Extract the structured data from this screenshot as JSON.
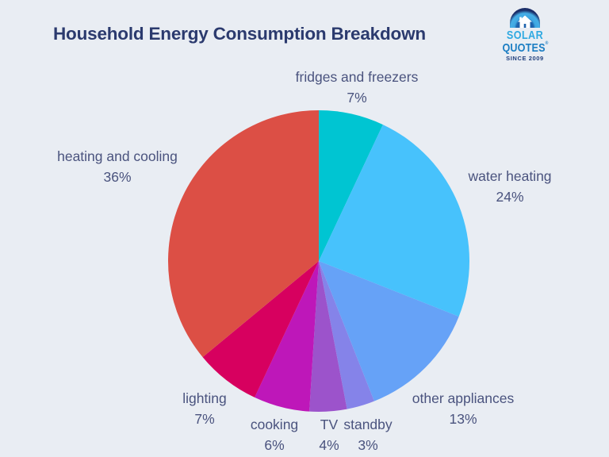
{
  "page": {
    "title": "Household Energy Consumption Breakdown",
    "background_color": "#E9EDF3",
    "title_color": "#2B3A6E",
    "label_color": "#4A537E"
  },
  "logo": {
    "name": "SolarQuotes",
    "line1": "SOLAR",
    "line2": "QUOTES",
    "registered_mark": "®",
    "tagline": "SINCE 2009",
    "icon": "house-in-dome-icon",
    "colors": {
      "solar_text": "#2FA9E1",
      "quotes_text": "#1C7EC3",
      "tagline_text": "#21407E",
      "dome_outer": "#1B2F6B",
      "dome_mid": "#3FA7E2",
      "dome_inner": "#1E63AD"
    }
  },
  "chart_data": {
    "type": "pie",
    "title": "Household Energy Consumption Breakdown",
    "categories": [
      "fridges and freezers",
      "water heating",
      "other appliances",
      "standby",
      "TV",
      "cooking",
      "lighting",
      "heating and cooling"
    ],
    "values": [
      7,
      24,
      13,
      3,
      4,
      6,
      7,
      36
    ],
    "unit": "%",
    "value_labels": [
      "7%",
      "24%",
      "13%",
      "3%",
      "4%",
      "6%",
      "7%",
      "36%"
    ],
    "colors": [
      "#00C5D2",
      "#47C2FC",
      "#66A2F7",
      "#8583E9",
      "#9C53CB",
      "#BE17B9",
      "#D7005F",
      "#DC4F45"
    ],
    "start_angle_deg": 0,
    "direction": "clockwise",
    "legend": false,
    "label_style": "outside, category name with percentage beneath"
  }
}
